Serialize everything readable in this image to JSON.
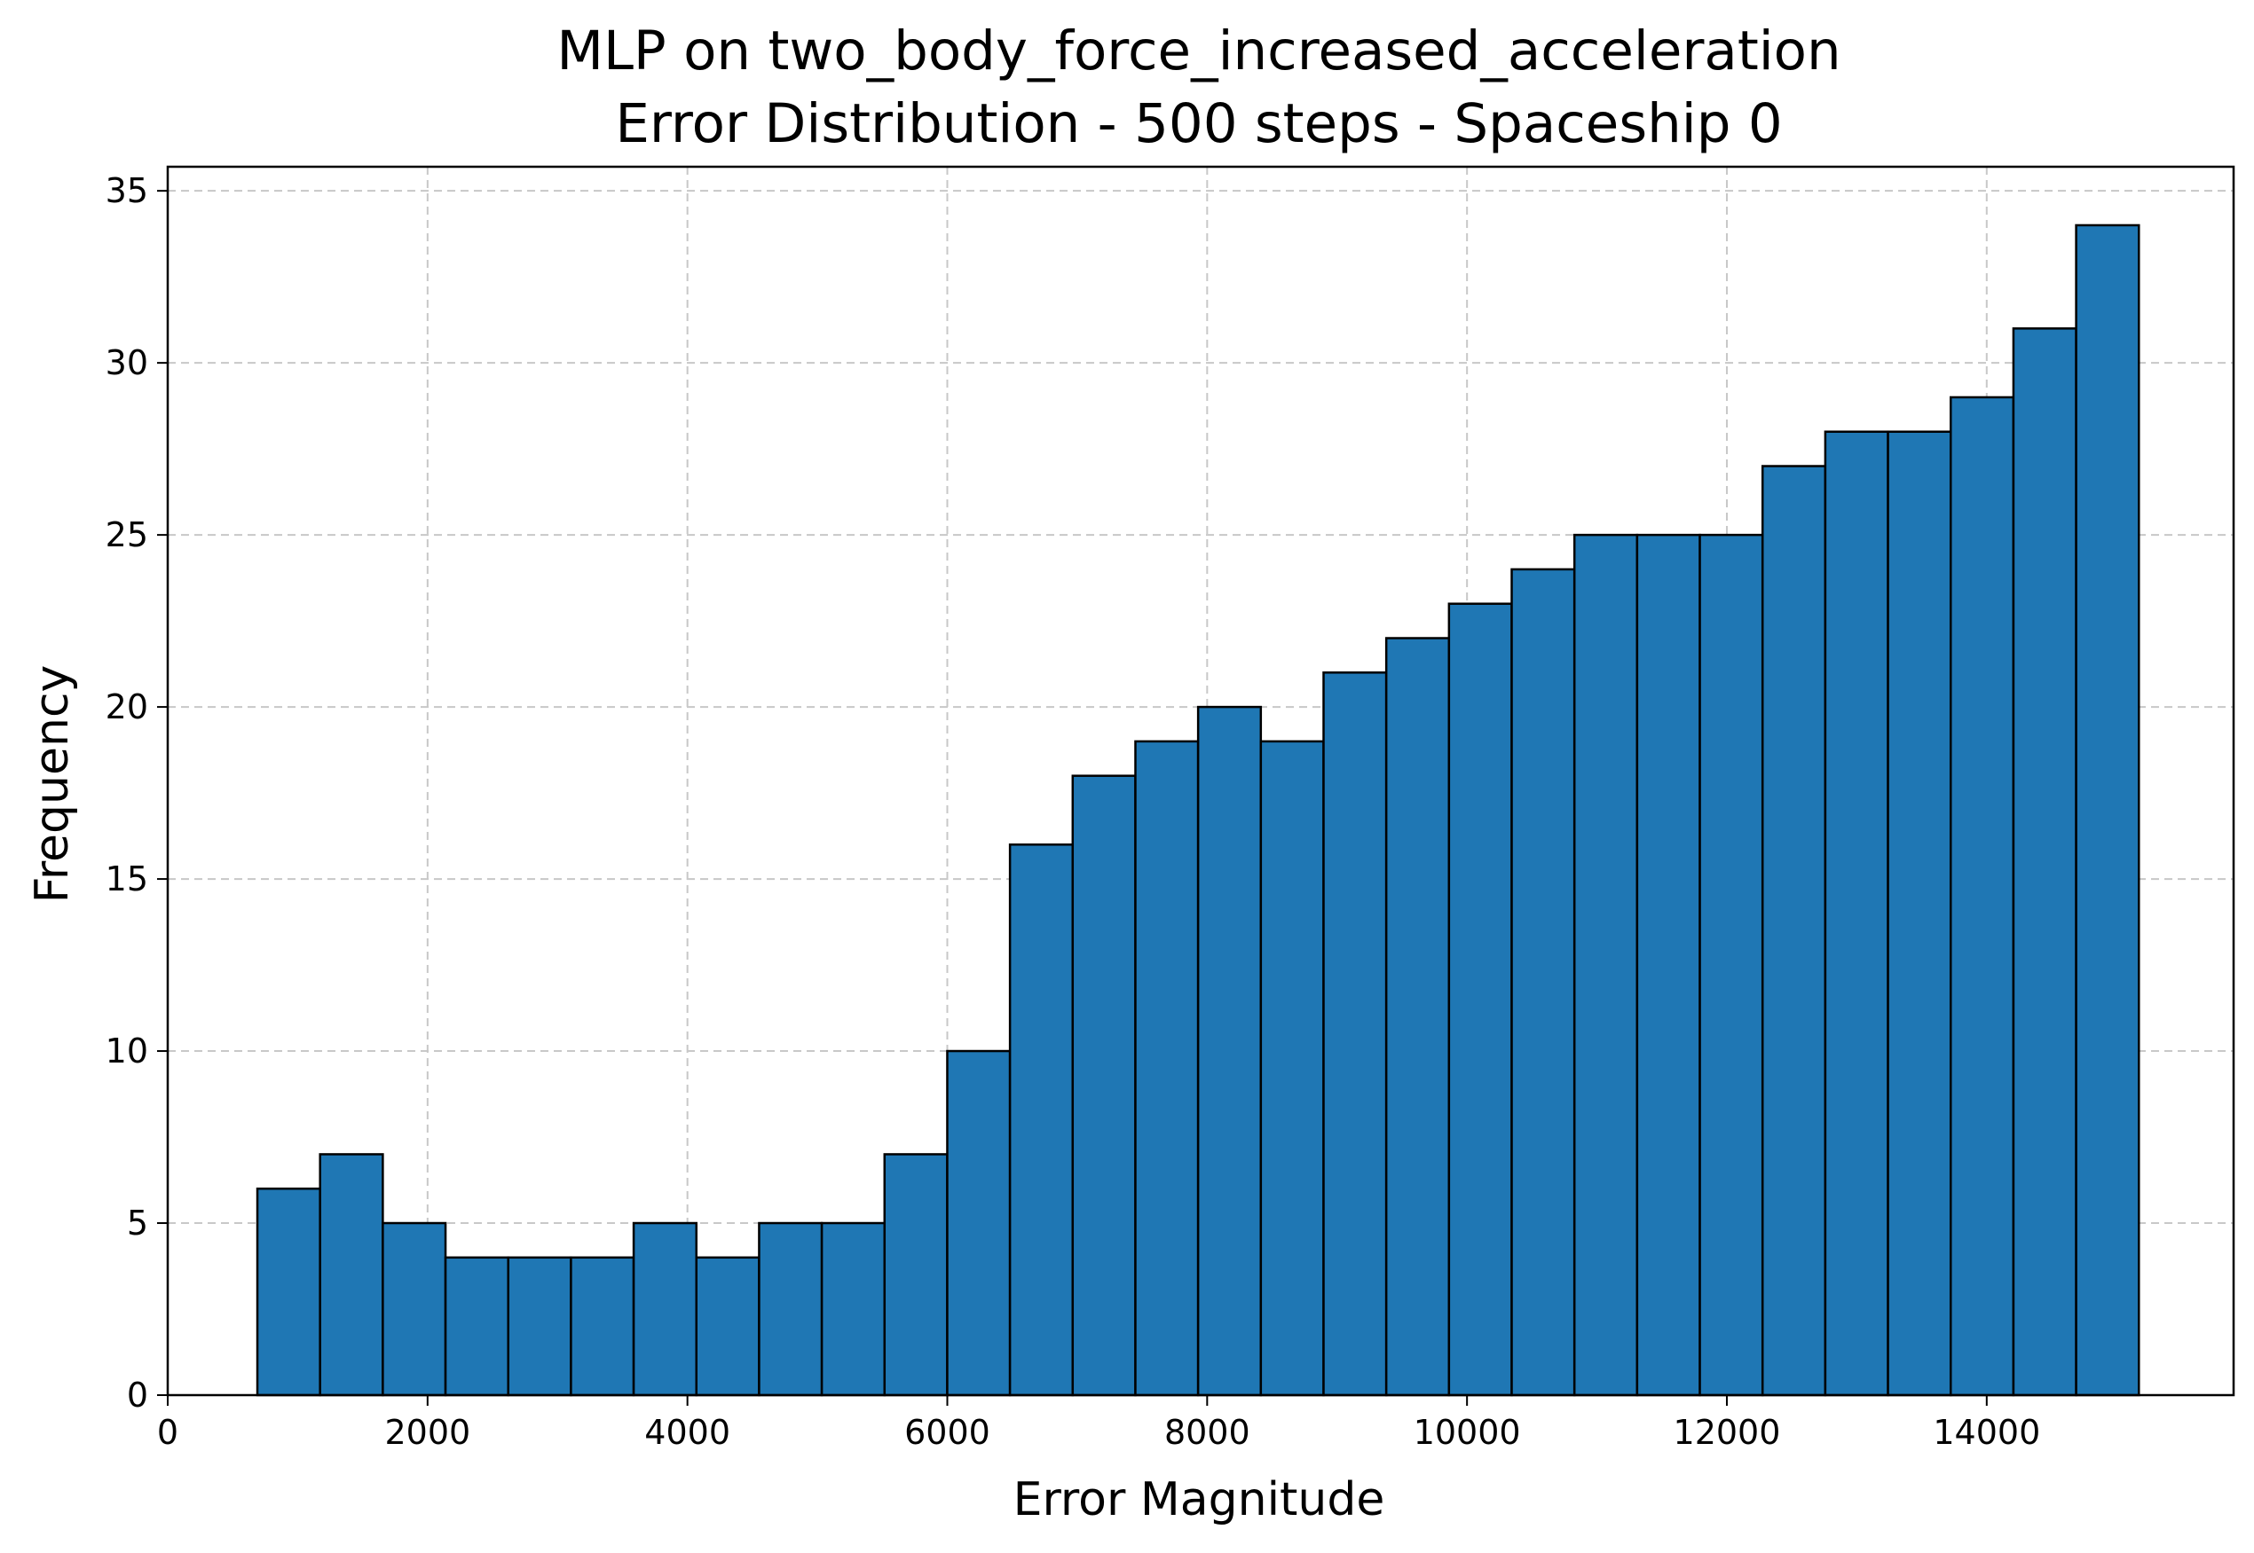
{
  "chart_data": {
    "type": "histogram",
    "title": [
      "MLP on two_body_force_increased_acceleration",
      "Error Distribution - 500 steps - Spaceship 0"
    ],
    "xlabel": "Error Magnitude",
    "ylabel": "Frequency",
    "xlim": [
      0,
      15900
    ],
    "ylim": [
      0,
      35.7
    ],
    "xticks": [
      0,
      2000,
      4000,
      6000,
      8000,
      10000,
      12000,
      14000
    ],
    "yticks": [
      0,
      5,
      10,
      15,
      20,
      25,
      30,
      35
    ],
    "grid": true,
    "bins": {
      "start": 690,
      "width": 482.7,
      "counts": [
        6,
        7,
        5,
        4,
        4,
        4,
        5,
        4,
        5,
        5,
        7,
        10,
        16,
        18,
        19,
        20,
        19,
        21,
        22,
        23,
        24,
        25,
        25,
        25,
        27,
        28,
        28,
        29,
        31,
        34
      ]
    },
    "colors": {
      "bar": "#1f77b4",
      "edge": "#000000",
      "grid": "#c8c8c8"
    }
  }
}
